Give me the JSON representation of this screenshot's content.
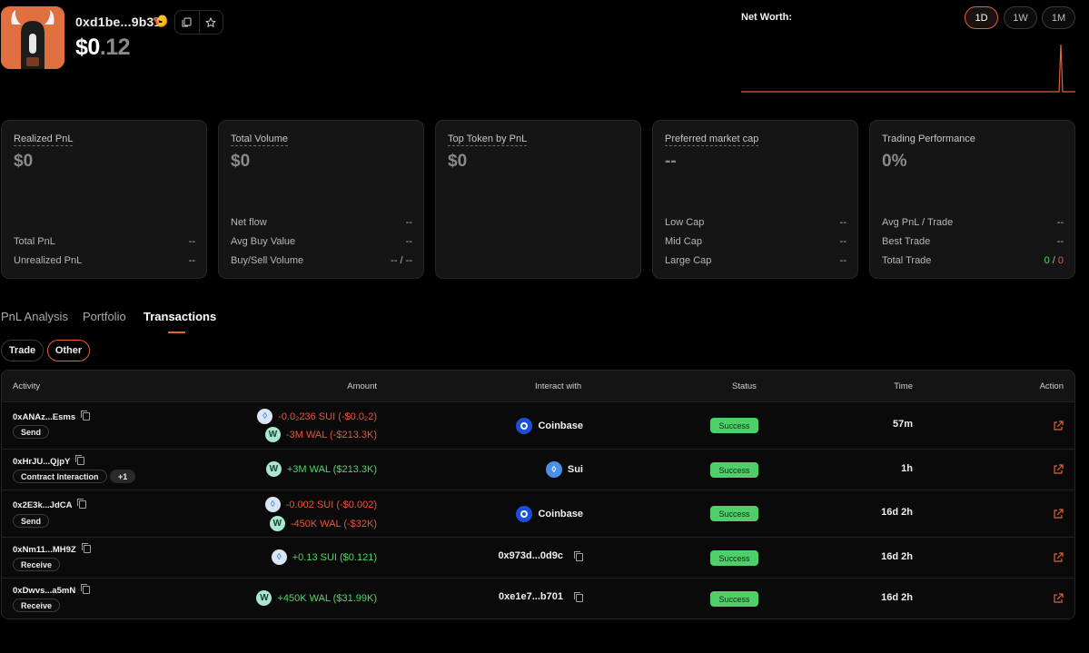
{
  "header": {
    "address": "0xd1be...9b31",
    "rank_emoji": "🍤",
    "balance_main": "$0",
    "balance_decimal": ".12",
    "net_worth_label": "Net Worth:",
    "timeframes": [
      "1D",
      "1W",
      "1M"
    ],
    "active_timeframe": "1D",
    "icons": [
      "copy-icon",
      "star-icon"
    ]
  },
  "cards": {
    "realized": {
      "title": "Realized PnL",
      "value": "$0",
      "rows": [
        {
          "label": "Total PnL",
          "value": "--"
        },
        {
          "label": "Unrealized PnL",
          "value": "--"
        }
      ]
    },
    "volume": {
      "title": "Total Volume",
      "value": "$0",
      "rows": [
        {
          "label": "Net flow",
          "value": "--"
        },
        {
          "label": "Avg Buy Value",
          "value": "--"
        },
        {
          "label": "Buy/Sell Volume",
          "value": "-- / --"
        }
      ]
    },
    "top_token": {
      "title": "Top Token by PnL",
      "value": "$0"
    },
    "market_cap": {
      "title": "Preferred market cap",
      "value": "--",
      "rows": [
        {
          "label": "Low Cap",
          "value": "--"
        },
        {
          "label": "Mid Cap",
          "value": "--"
        },
        {
          "label": "Large Cap",
          "value": "--"
        }
      ]
    },
    "performance": {
      "title": "Trading Performance",
      "value": "0%",
      "rows": [
        {
          "label": "Avg PnL / Trade",
          "value": "--"
        },
        {
          "label": "Best Trade",
          "value": "--"
        }
      ],
      "total_trade_label": "Total Trade",
      "wins": "0",
      "sep": "/",
      "losses": "0"
    }
  },
  "tabs": [
    "PnL Analysis",
    "Portfolio",
    "Transactions"
  ],
  "active_tab": "Transactions",
  "filters": [
    "Trade",
    "Other"
  ],
  "active_filter": "Other",
  "table": {
    "headers": [
      "Activity",
      "Amount",
      "Interact with",
      "Status",
      "Time",
      "Action"
    ],
    "rows": [
      {
        "hash": "0xANAz...Esms",
        "tags": [
          "Send"
        ],
        "amounts": [
          {
            "token": "sui",
            "text": "-0.0₂236 SUI (-$0.0₂2)",
            "tone": "red"
          },
          {
            "token": "wal",
            "text": "-3M WAL (-$213.3K)",
            "tone": "red"
          }
        ],
        "interact": "Coinbase",
        "interact_icon": "coinbase-icon",
        "status": "Success",
        "time": "57m"
      },
      {
        "hash": "0xHrJU...QjpY",
        "tags": [
          "Contract Interaction",
          "+1"
        ],
        "amounts": [
          {
            "token": "wal",
            "text": "+3M WAL ($213.3K)",
            "tone": "green"
          }
        ],
        "interact": "Sui",
        "interact_icon": "sui-icon",
        "status": "Success",
        "time": "1h"
      },
      {
        "hash": "0x2E3k...JdCA",
        "tags": [
          "Send"
        ],
        "amounts": [
          {
            "token": "sui",
            "text": "-0.002 SUI (-$0.002)",
            "tone": "red"
          },
          {
            "token": "wal",
            "text": "-450K WAL (-$32K)",
            "tone": "red"
          }
        ],
        "interact": "Coinbase",
        "interact_icon": "coinbase-icon",
        "status": "Success",
        "time": "16d 2h"
      },
      {
        "hash": "0xNm11...MH9Z",
        "tags": [
          "Receive"
        ],
        "amounts": [
          {
            "token": "sui",
            "text": "+0.13 SUI ($0.121)",
            "tone": "green"
          }
        ],
        "interact": "0x973d...0d9c",
        "interact_icon": "copy-icon",
        "status": "Success",
        "time": "16d 2h"
      },
      {
        "hash": "0xDwvs...a5mN",
        "tags": [
          "Receive"
        ],
        "amounts": [
          {
            "token": "wal",
            "text": "+450K WAL ($31.99K)",
            "tone": "green"
          }
        ],
        "interact": "0xe1e7...b701",
        "interact_icon": "copy-icon",
        "status": "Success",
        "time": "16d 2h"
      }
    ]
  },
  "colors": {
    "accent": "#e2623a",
    "success": "#4fcf6a",
    "negative": "#e8553a",
    "positive": "#4cd964",
    "card_bg": "#151515"
  }
}
